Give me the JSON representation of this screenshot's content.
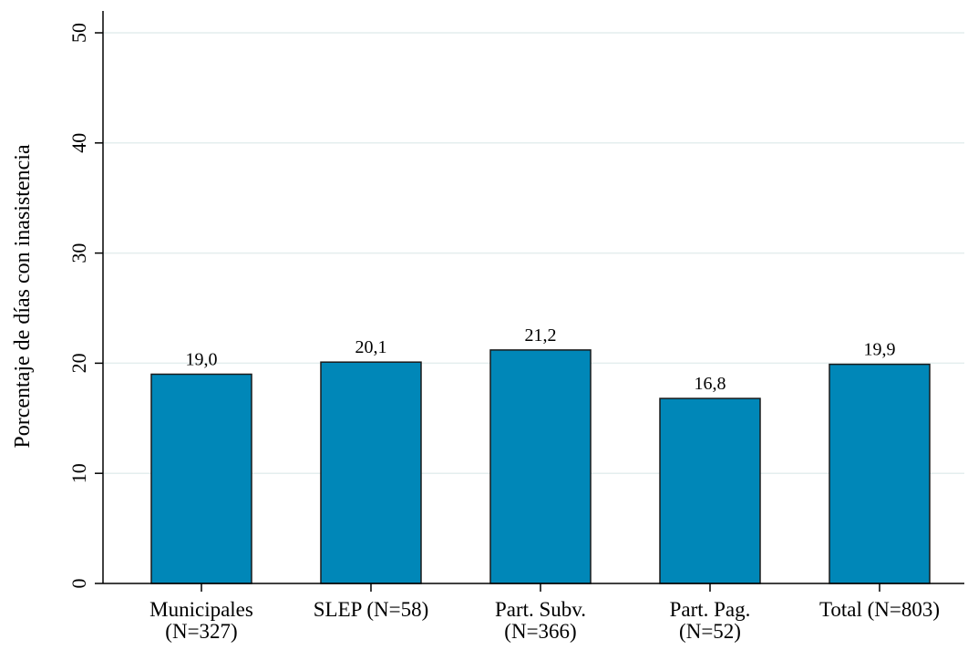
{
  "chart_data": {
    "type": "bar",
    "categories": [
      [
        "Municipales",
        "(N=327)"
      ],
      [
        "SLEP (N=58)"
      ],
      [
        "Part. Subv.",
        "(N=366)"
      ],
      [
        "Part. Pag.",
        "(N=52)"
      ],
      [
        "Total (N=803)"
      ]
    ],
    "values": [
      19.0,
      20.1,
      21.2,
      16.8,
      19.9
    ],
    "value_labels": [
      "19,0",
      "20,1",
      "21,2",
      "16,8",
      "19,9"
    ],
    "ylabel": "Porcentaje de días con inasistencia",
    "xlabel": "",
    "ylim": [
      0,
      50
    ],
    "yticks": [
      0,
      10,
      20,
      30,
      40,
      50
    ],
    "grid": true,
    "colors": {
      "bar": "#0087b8",
      "bar_edge": "#1a1a1a",
      "grid": "#e4eeee",
      "axis": "#000000"
    }
  }
}
